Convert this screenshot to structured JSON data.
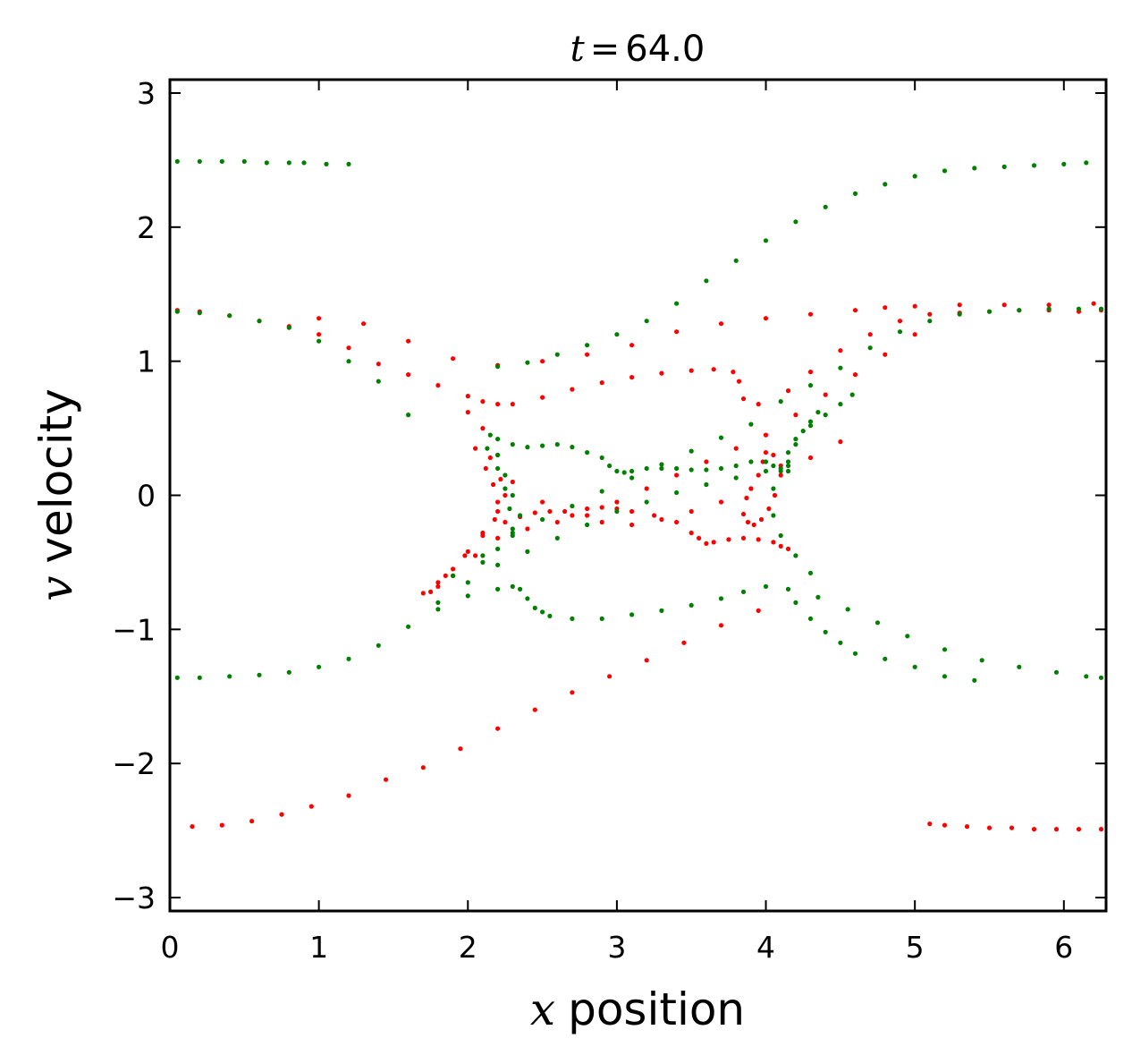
{
  "chart_data": {
    "type": "scatter",
    "title": {
      "var": "t",
      "equals": "=",
      "value": "64.0"
    },
    "xlabel": {
      "var": "x",
      "text": "position"
    },
    "ylabel": {
      "var": "v",
      "text": "velocity"
    },
    "xlim": [
      0,
      6.2832
    ],
    "ylim": [
      -3.1,
      3.1
    ],
    "grid": false,
    "legend": "none",
    "xticks": [
      {
        "value": 0,
        "label": "0"
      },
      {
        "value": 1,
        "label": "1"
      },
      {
        "value": 2,
        "label": "2"
      },
      {
        "value": 3,
        "label": "3"
      },
      {
        "value": 4,
        "label": "4"
      },
      {
        "value": 5,
        "label": "5"
      },
      {
        "value": 6,
        "label": "6"
      }
    ],
    "yticks": [
      {
        "value": -3,
        "label": "−3"
      },
      {
        "value": -2,
        "label": "−2"
      },
      {
        "value": -1,
        "label": "−1"
      },
      {
        "value": 0,
        "label": "0"
      },
      {
        "value": 1,
        "label": "1"
      },
      {
        "value": 2,
        "label": "2"
      },
      {
        "value": 3,
        "label": "3"
      }
    ],
    "series": [
      {
        "name": "red",
        "color": "#ff0000",
        "x": [
          0.05,
          0.2,
          0.4,
          0.6,
          0.8,
          1.0,
          1.2,
          1.4,
          1.6,
          1.8,
          2.0,
          2.1,
          2.2,
          2.3,
          2.5,
          2.7,
          2.9,
          3.1,
          3.3,
          3.5,
          3.65,
          3.78,
          3.82,
          3.85,
          3.95,
          4.15,
          4.3,
          4.5,
          4.7,
          4.9,
          5.1,
          5.3,
          5.5,
          5.7,
          5.9,
          6.1,
          6.25,
          2.0,
          2.1,
          2.2,
          2.3,
          2.5,
          2.7,
          2.9,
          3.1,
          3.3,
          3.5,
          3.7,
          3.9,
          4.1,
          4.3,
          4.5,
          2.05,
          2.12,
          2.17,
          2.2,
          2.18,
          2.1,
          2.0,
          1.9,
          1.8,
          1.7,
          2.15,
          2.22,
          2.25,
          2.2,
          2.1,
          1.98,
          1.85,
          2.25,
          2.35,
          2.45,
          2.55,
          2.65,
          2.8,
          2.9,
          3.0,
          3.1,
          3.25,
          3.4,
          3.5,
          3.55,
          3.6,
          3.65,
          3.75,
          3.85,
          3.95,
          4.05,
          4.1,
          4.15,
          3.9,
          3.95,
          3.98,
          4.0,
          4.05,
          4.1,
          3.87,
          3.85,
          3.88,
          3.92,
          3.97,
          4.02,
          4.06,
          1.75,
          1.8,
          1.9,
          2.05,
          2.2,
          2.4,
          2.6,
          2.8,
          3.0,
          3.2,
          3.4,
          3.6,
          3.8,
          4.0,
          4.2,
          4.4,
          4.6,
          4.8,
          5.0,
          1.0,
          1.3,
          1.6,
          1.9,
          2.2,
          2.5,
          2.8,
          3.1,
          3.4,
          3.7,
          4.0,
          4.3,
          4.6,
          4.8,
          5.0,
          5.3,
          5.6,
          5.9,
          6.2,
          0.15,
          0.35,
          0.55,
          0.75,
          0.95,
          1.2,
          1.45,
          1.7,
          1.95,
          2.2,
          2.45,
          2.7,
          2.95,
          3.2,
          3.45,
          3.7,
          3.95,
          5.1,
          5.2,
          5.35,
          5.5,
          5.65,
          5.8,
          5.95,
          6.1,
          6.25
        ],
        "y": [
          1.38,
          1.37,
          1.34,
          1.3,
          1.26,
          1.2,
          1.1,
          0.98,
          0.9,
          0.82,
          0.74,
          0.7,
          0.68,
          0.68,
          0.73,
          0.79,
          0.84,
          0.88,
          0.91,
          0.93,
          0.94,
          0.92,
          0.85,
          0.72,
          0.68,
          0.78,
          0.92,
          1.08,
          1.2,
          1.3,
          1.35,
          1.36,
          1.37,
          1.38,
          1.38,
          1.37,
          1.38,
          0.62,
          0.5,
          0.3,
          0.1,
          -0.05,
          -0.15,
          -0.2,
          -0.22,
          -0.18,
          -0.12,
          -0.05,
          0.05,
          0.15,
          0.28,
          0.4,
          0.35,
          0.2,
          0.08,
          -0.05,
          -0.18,
          -0.3,
          -0.42,
          -0.55,
          -0.65,
          -0.73,
          0.28,
          0.12,
          0.0,
          -0.12,
          -0.28,
          -0.45,
          -0.6,
          -0.2,
          -0.16,
          -0.13,
          -0.12,
          -0.12,
          -0.1,
          -0.09,
          -0.1,
          -0.12,
          -0.15,
          -0.2,
          -0.28,
          -0.32,
          -0.36,
          -0.35,
          -0.33,
          -0.32,
          -0.33,
          -0.35,
          -0.38,
          -0.4,
          0.05,
          0.15,
          0.25,
          0.32,
          0.3,
          0.22,
          -0.02,
          -0.14,
          -0.2,
          -0.22,
          -0.18,
          -0.1,
          0.0,
          -0.72,
          -0.68,
          -0.6,
          -0.45,
          -0.32,
          -0.25,
          -0.2,
          -0.15,
          -0.05,
          0.05,
          0.15,
          0.25,
          0.35,
          0.45,
          0.6,
          0.75,
          0.9,
          1.05,
          1.2,
          1.32,
          1.28,
          1.15,
          1.02,
          0.97,
          1.0,
          1.05,
          1.12,
          1.22,
          1.28,
          1.32,
          1.35,
          1.38,
          1.4,
          1.41,
          1.42,
          1.42,
          1.42,
          1.43,
          -2.47,
          -2.46,
          -2.43,
          -2.38,
          -2.32,
          -2.24,
          -2.12,
          -2.03,
          -1.89,
          -1.74,
          -1.6,
          -1.47,
          -1.35,
          -1.23,
          -1.1,
          -0.97,
          -0.86,
          -2.45,
          -2.46,
          -2.47,
          -2.48,
          -2.48,
          -2.49,
          -2.49,
          -2.49,
          -2.49
        ]
      },
      {
        "name": "green",
        "color": "#008000",
        "x": [
          0.05,
          0.2,
          0.4,
          0.6,
          0.8,
          1.0,
          1.2,
          1.4,
          1.6,
          1.8,
          2.0,
          2.2,
          2.3,
          2.35,
          2.4,
          2.45,
          2.5,
          2.55,
          2.7,
          2.9,
          3.1,
          3.3,
          3.5,
          3.7,
          3.85,
          4.0,
          4.15,
          4.35,
          4.55,
          4.75,
          4.95,
          5.2,
          5.45,
          5.7,
          5.95,
          6.15,
          6.25,
          1.8,
          2.0,
          2.2,
          2.4,
          2.6,
          2.8,
          3.0,
          3.2,
          3.4,
          3.6,
          3.8,
          4.0,
          4.15,
          2.2,
          2.3,
          2.4,
          2.5,
          2.6,
          2.7,
          2.8,
          2.9,
          2.95,
          3.0,
          3.05,
          3.1,
          3.2,
          3.3,
          3.4,
          3.5,
          3.6,
          3.7,
          3.8,
          3.9,
          4.0,
          4.05,
          4.1,
          4.15,
          2.15,
          2.2,
          2.25,
          2.3,
          2.35,
          2.3,
          2.2,
          2.1,
          2.13,
          2.2,
          2.25,
          2.28,
          2.3,
          4.05,
          4.1,
          4.15,
          4.2,
          4.3,
          4.4,
          4.5,
          4.58,
          4.05,
          4.1,
          4.2,
          4.3,
          4.15,
          4.2,
          4.25,
          4.3,
          4.35,
          1.9,
          2.1,
          2.3,
          2.5,
          2.7,
          2.9,
          3.1,
          3.3,
          3.5,
          3.7,
          3.9,
          4.1,
          4.3,
          4.5,
          4.7,
          4.9,
          5.1,
          5.3,
          5.5,
          5.7,
          5.9,
          6.1,
          6.25,
          1.6,
          1.4,
          1.2,
          1.0,
          0.8,
          0.6,
          0.4,
          0.2,
          0.05,
          4.2,
          4.3,
          4.4,
          4.5,
          4.6,
          4.8,
          5.0,
          5.2,
          5.4,
          0.05,
          0.2,
          0.35,
          0.5,
          0.65,
          0.8,
          0.9,
          1.05,
          1.2,
          2.2,
          2.4,
          2.6,
          2.8,
          3.0,
          3.2,
          3.4,
          3.6,
          3.8,
          4.0,
          4.2,
          4.4,
          4.6,
          4.8,
          5.0,
          5.2,
          5.4,
          5.6,
          5.8,
          6.0,
          6.15
        ],
        "y": [
          -1.36,
          -1.36,
          -1.35,
          -1.34,
          -1.32,
          -1.28,
          -1.22,
          -1.12,
          -0.98,
          -0.85,
          -0.75,
          -0.7,
          -0.68,
          -0.7,
          -0.77,
          -0.84,
          -0.87,
          -0.9,
          -0.92,
          -0.92,
          -0.89,
          -0.86,
          -0.82,
          -0.77,
          -0.72,
          -0.68,
          -0.7,
          -0.76,
          -0.85,
          -0.95,
          -1.05,
          -1.15,
          -1.23,
          -1.28,
          -1.32,
          -1.35,
          -1.36,
          -0.8,
          -0.65,
          -0.52,
          -0.42,
          -0.32,
          -0.22,
          -0.12,
          -0.05,
          0.02,
          0.08,
          0.13,
          0.18,
          0.22,
          0.42,
          0.38,
          0.36,
          0.37,
          0.38,
          0.36,
          0.32,
          0.28,
          0.22,
          0.18,
          0.17,
          0.18,
          0.2,
          0.2,
          0.2,
          0.19,
          0.19,
          0.2,
          0.22,
          0.25,
          0.25,
          0.22,
          0.2,
          0.18,
          0.45,
          0.3,
          0.15,
          0.0,
          -0.15,
          -0.28,
          -0.4,
          -0.5,
          0.35,
          0.2,
          0.05,
          -0.1,
          -0.25,
          0.05,
          0.18,
          0.32,
          0.42,
          0.52,
          0.6,
          0.68,
          0.75,
          -0.15,
          -0.3,
          -0.45,
          -0.58,
          0.25,
          0.38,
          0.48,
          0.55,
          0.62,
          -0.6,
          -0.45,
          -0.3,
          -0.18,
          -0.08,
          0.03,
          0.13,
          0.23,
          0.33,
          0.43,
          0.53,
          0.7,
          0.82,
          0.95,
          1.1,
          1.22,
          1.3,
          1.35,
          1.37,
          1.38,
          1.39,
          1.39,
          1.39,
          0.6,
          0.85,
          1.0,
          1.15,
          1.25,
          1.3,
          1.34,
          1.36,
          1.37,
          -0.8,
          -0.92,
          -1.02,
          -1.1,
          -1.18,
          -1.22,
          -1.28,
          -1.35,
          -1.38,
          2.49,
          2.49,
          2.49,
          2.49,
          2.48,
          2.48,
          2.48,
          2.47,
          2.47,
          0.96,
          0.99,
          1.05,
          1.12,
          1.2,
          1.3,
          1.43,
          1.6,
          1.75,
          1.9,
          2.04,
          2.15,
          2.25,
          2.32,
          2.38,
          2.42,
          2.44,
          2.45,
          2.46,
          2.47,
          2.48
        ]
      }
    ]
  }
}
